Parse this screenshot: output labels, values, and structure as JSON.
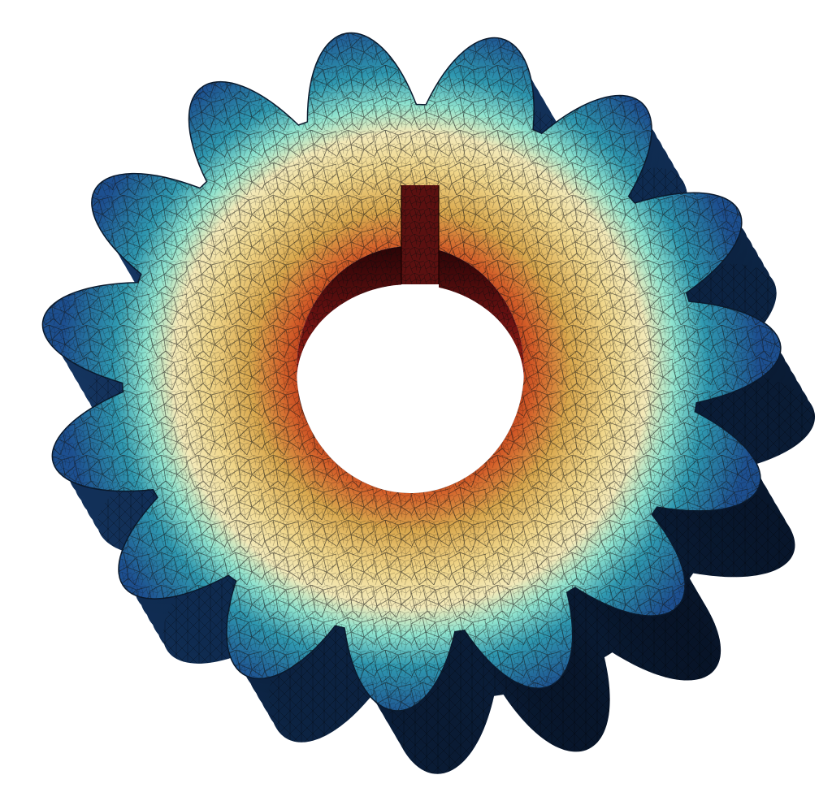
{
  "figure": {
    "subject": "gear-mesh-render",
    "tooth_count": 15,
    "has_keyway": true,
    "colors": {
      "background": "#ffffff",
      "tooth_tip": "#1d4f8f",
      "tooth_mid": "#2f98b0",
      "rim": "#7ee0cc",
      "face_light": "#f3e3a0",
      "face_mid": "#d9a84e",
      "face_dark": "#b86a2c",
      "bore_edge": "#b02a12",
      "bore_deep": "#5c0c10",
      "shadow_side": "#0b2240",
      "mesh_line": "#1a1a1a"
    }
  }
}
